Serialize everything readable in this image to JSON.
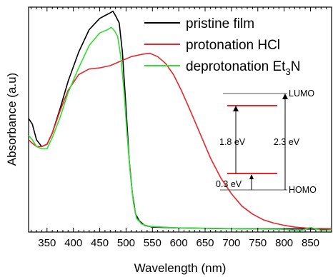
{
  "chart_data": {
    "type": "line",
    "xlabel": "Wavelength (nm)",
    "ylabel": "Absorbance (a.u)",
    "xlim": [
      315,
      890
    ],
    "ylim": [
      0,
      1.0
    ],
    "xticks": [
      350,
      400,
      450,
      500,
      550,
      600,
      650,
      700,
      750,
      800,
      850
    ],
    "legend_position": "top-right",
    "series": [
      {
        "name": "pristine film",
        "color": "#000000",
        "x": [
          315,
          322,
          330,
          340,
          350,
          360,
          375,
          390,
          410,
          430,
          450,
          462,
          470,
          475,
          480,
          487,
          493,
          500,
          506,
          512,
          518,
          525,
          535,
          550,
          600,
          700,
          800,
          890
        ],
        "y": [
          0.505,
          0.48,
          0.41,
          0.38,
          0.39,
          0.44,
          0.55,
          0.67,
          0.8,
          0.9,
          0.95,
          0.965,
          0.975,
          0.982,
          0.962,
          0.93,
          0.8,
          0.55,
          0.32,
          0.17,
          0.08,
          0.05,
          0.03,
          0.022,
          0.018,
          0.015,
          0.014,
          0.013
        ]
      },
      {
        "name": "protonation HCl",
        "color": "#e8262b",
        "x": [
          315,
          322,
          330,
          340,
          350,
          360,
          375,
          390,
          410,
          430,
          450,
          470,
          490,
          510,
          530,
          545,
          560,
          575,
          590,
          605,
          620,
          640,
          660,
          680,
          700,
          720,
          740,
          760,
          780,
          800,
          820,
          840,
          860,
          890
        ],
        "y": [
          0.41,
          0.395,
          0.38,
          0.38,
          0.39,
          0.44,
          0.54,
          0.63,
          0.7,
          0.725,
          0.73,
          0.74,
          0.76,
          0.78,
          0.79,
          0.795,
          0.78,
          0.75,
          0.7,
          0.63,
          0.55,
          0.44,
          0.33,
          0.24,
          0.17,
          0.115,
          0.08,
          0.055,
          0.04,
          0.03,
          0.022,
          0.018,
          0.016,
          0.015
        ]
      },
      {
        "name": "deprotonation Et3N",
        "color": "#33dd33",
        "x": [
          315,
          322,
          330,
          340,
          350,
          360,
          375,
          390,
          410,
          430,
          450,
          465,
          472,
          478,
          484,
          490,
          496,
          502,
          508,
          514,
          520,
          530,
          545,
          600,
          700,
          800,
          830,
          850,
          870,
          890
        ],
        "y": [
          0.43,
          0.41,
          0.38,
          0.37,
          0.37,
          0.42,
          0.51,
          0.62,
          0.73,
          0.83,
          0.885,
          0.9,
          0.91,
          0.895,
          0.87,
          0.78,
          0.63,
          0.43,
          0.26,
          0.13,
          0.06,
          0.035,
          0.025,
          0.018,
          0.015,
          0.012,
          0.005,
          0.02,
          0.008,
          0.01
        ]
      }
    ],
    "inset": {
      "lumo_label": "LUMO",
      "homo_label": "HOMO",
      "gap_small_label": "1.8 eV",
      "gap_large_label": "2.3 eV",
      "gap_bottom_label": "0.3 eV"
    }
  }
}
